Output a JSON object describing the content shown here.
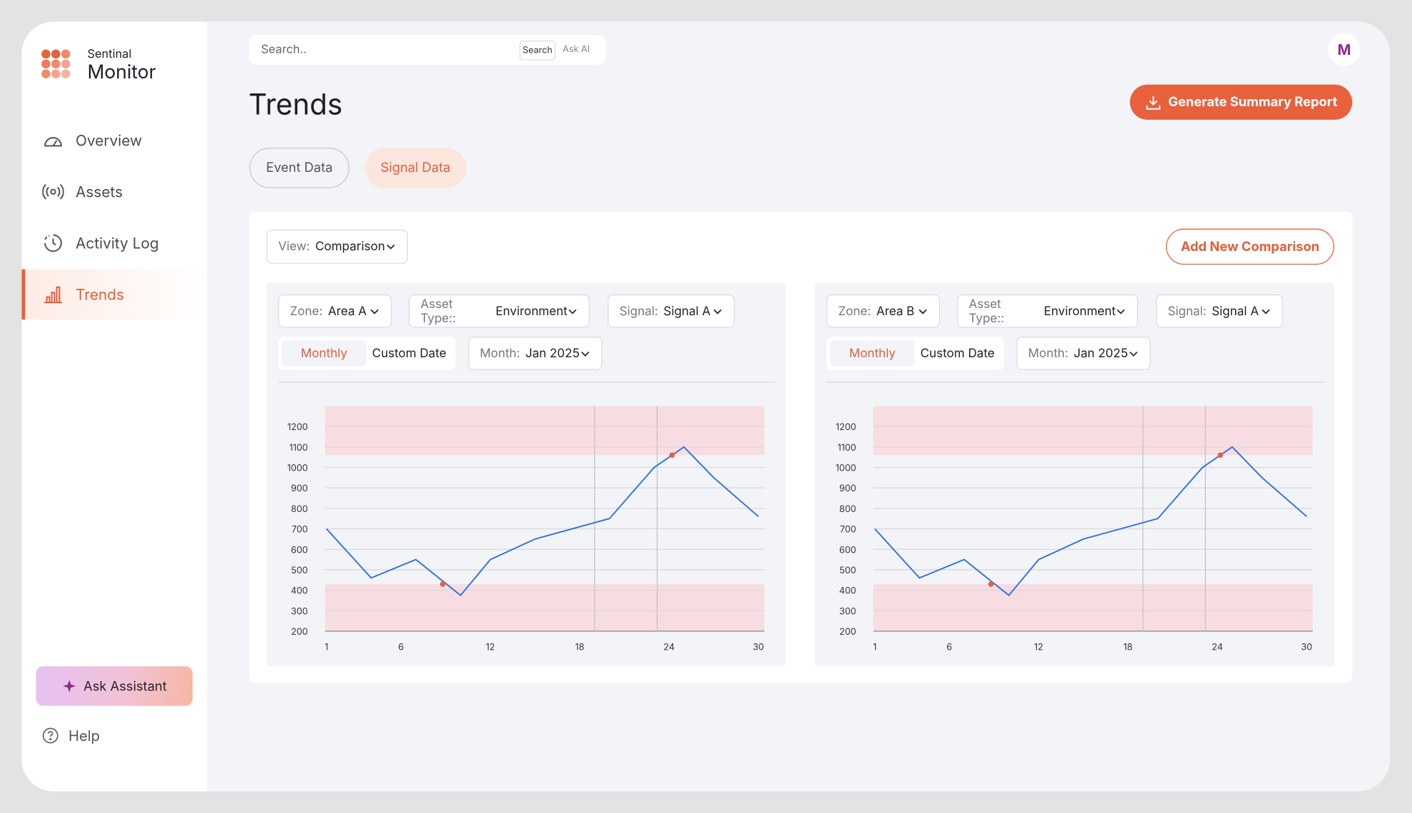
{
  "sidebar": {
    "brand_top": "Sentinal",
    "brand": "Monitor",
    "nav": [
      "Overview",
      "Assets",
      "Activity Log",
      "Trends"
    ],
    "assistant": "Ask Assistant",
    "help": "Help"
  },
  "search": {
    "placeholder": "Search..",
    "buttons": [
      "Search",
      "Ask AI"
    ]
  },
  "avatar": "M",
  "title": "Trends",
  "report_button": "Generate Summary Report",
  "tabs": [
    "Event Data",
    "Signal Data"
  ],
  "view": {
    "label": "View:",
    "value": "Comparison"
  },
  "add_button": "Add New Comparison",
  "panels": [
    {
      "filters": [
        {
          "label": "Zone:",
          "value": "Area A"
        },
        {
          "label": "Asset Type::",
          "value": "Environment"
        },
        {
          "label": "Signal:",
          "value": "Signal A"
        }
      ],
      "period": [
        "Monthly",
        "Custom Date"
      ],
      "month": {
        "label": "Month:",
        "value": "Jan 2025"
      },
      "chart_data": {
        "type": "line",
        "x": [
          1,
          4,
          7,
          10,
          12,
          15,
          20,
          23,
          25,
          27,
          30
        ],
        "series": [
          {
            "color": "#2f6fe0",
            "values": [
              700,
              460,
              550,
              375,
              550,
              650,
              750,
              1000,
              1100,
              950,
              760
            ]
          }
        ],
        "xlim": [
          0.9,
          30.4
        ],
        "xticks": [
          1,
          6,
          12,
          18,
          24,
          30
        ],
        "ylim": [
          200,
          1300
        ],
        "yticks": [
          200,
          300,
          400,
          500,
          600,
          700,
          800,
          900,
          1000,
          1100,
          1200
        ],
        "grid": true,
        "threshold_low": 430,
        "threshold_high": 1060,
        "band_color": "#f7dde1",
        "vlines": [
          19,
          23.2
        ],
        "markers": [
          {
            "x": 8.8,
            "y": 430
          },
          {
            "x": 24.2,
            "y": 1060
          }
        ],
        "marker_color": "#e8603c"
      }
    },
    {
      "filters": [
        {
          "label": "Zone:",
          "value": "Area B"
        },
        {
          "label": "Asset Type::",
          "value": "Environment"
        },
        {
          "label": "Signal:",
          "value": "Signal A"
        }
      ],
      "period": [
        "Monthly",
        "Custom Date"
      ],
      "month": {
        "label": "Month:",
        "value": "Jan 2025"
      },
      "chart_data": {
        "type": "line",
        "x": [
          1,
          4,
          7,
          10,
          12,
          15,
          20,
          23,
          25,
          27,
          30
        ],
        "series": [
          {
            "color": "#2f6fe0",
            "values": [
              700,
              460,
              550,
              375,
              550,
              650,
              750,
              1000,
              1100,
              950,
              760
            ]
          }
        ],
        "xlim": [
          0.9,
          30.4
        ],
        "xticks": [
          1,
          6,
          12,
          18,
          24,
          30
        ],
        "ylim": [
          200,
          1300
        ],
        "yticks": [
          200,
          300,
          400,
          500,
          600,
          700,
          800,
          900,
          1000,
          1100,
          1200
        ],
        "grid": true,
        "threshold_low": 430,
        "threshold_high": 1060,
        "band_color": "#f7dde1",
        "vlines": [
          19,
          23.2
        ],
        "markers": [
          {
            "x": 8.8,
            "y": 430
          },
          {
            "x": 24.2,
            "y": 1060
          }
        ],
        "marker_color": "#e8603c"
      }
    }
  ]
}
